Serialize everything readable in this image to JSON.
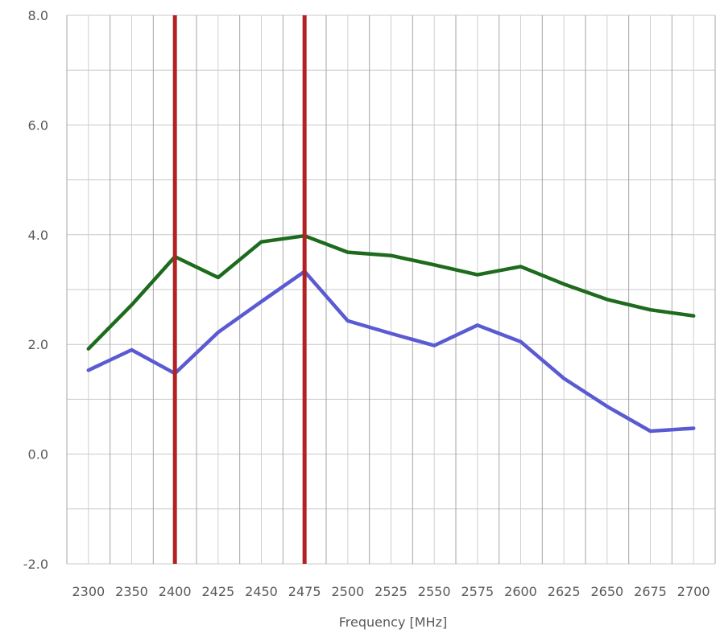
{
  "chart_data": {
    "type": "line",
    "title": "",
    "xlabel": "Frequency [MHz]",
    "ylabel": "",
    "categories": [
      "2300",
      "2350",
      "2400",
      "2425",
      "2450",
      "2475",
      "2500",
      "2525",
      "2550",
      "2575",
      "2600",
      "2625",
      "2650",
      "2675",
      "2700"
    ],
    "ylim": [
      -2.0,
      8.0
    ],
    "y_ticks": [
      "8.0",
      "6.0",
      "4.0",
      "2.0",
      "0.0",
      "-2.0"
    ],
    "y_tick_values": [
      8,
      6,
      4,
      2,
      0,
      -2
    ],
    "grid": true,
    "series": [
      {
        "color": "#1e6b1e",
        "values": [
          1.92,
          2.72,
          3.6,
          3.22,
          3.87,
          3.98,
          3.68,
          3.62,
          3.45,
          3.27,
          3.42,
          3.1,
          2.82,
          2.63,
          2.52
        ]
      },
      {
        "color": "#5a5ad2",
        "values": [
          1.53,
          1.9,
          1.47,
          2.22,
          2.78,
          3.33,
          2.43,
          2.2,
          1.98,
          2.35,
          2.05,
          1.38,
          0.87,
          0.42,
          0.47
        ]
      }
    ],
    "markers": [
      {
        "category": "2400",
        "color": "#b22222"
      },
      {
        "category": "2475",
        "color": "#b22222"
      }
    ]
  }
}
